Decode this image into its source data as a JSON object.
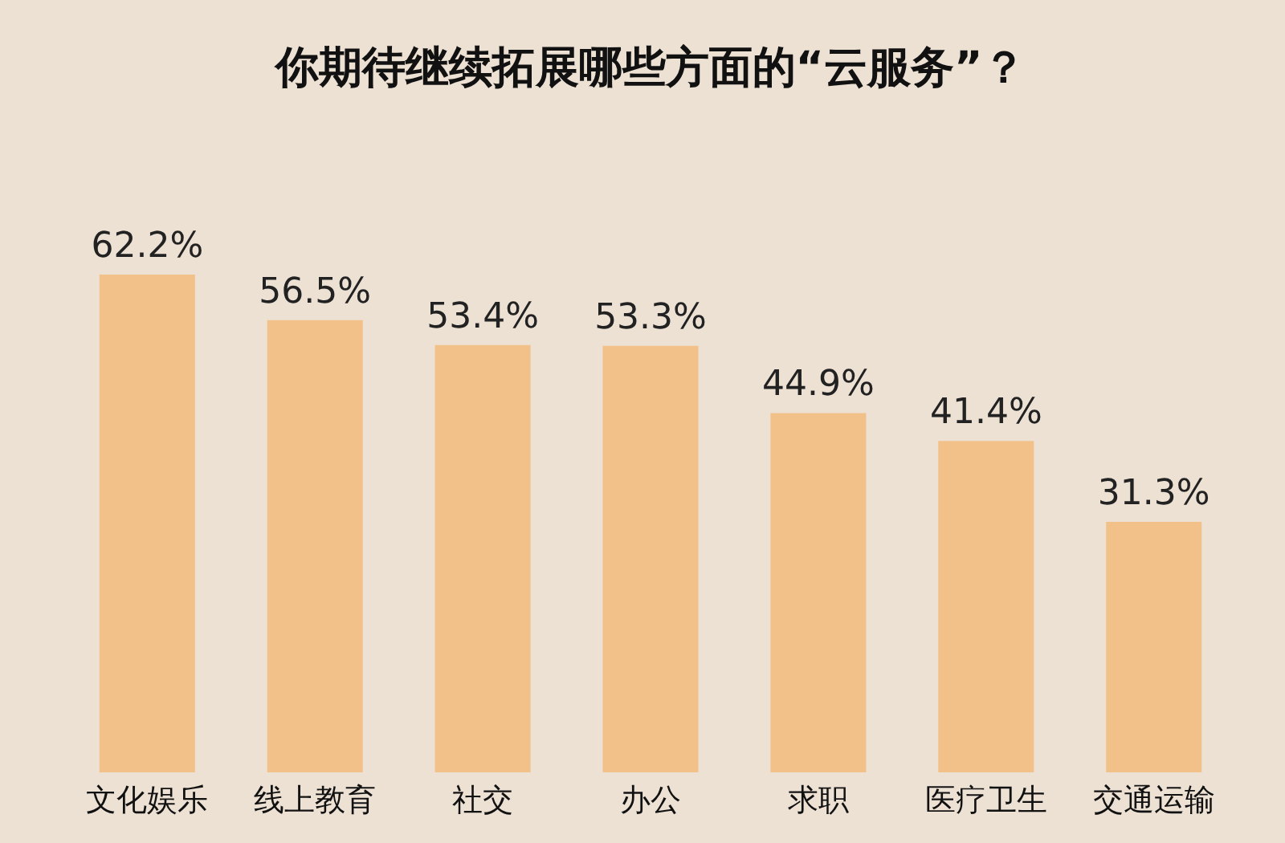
{
  "chart_data": {
    "type": "bar",
    "title": "你期待继续拓展哪些方面的“云服务”？",
    "categories": [
      "文化娱乐",
      "线上教育",
      "社交",
      "办公",
      "求职",
      "医疗卫生",
      "交通运输"
    ],
    "values": [
      62.2,
      56.5,
      53.4,
      53.3,
      44.9,
      41.4,
      31.3
    ],
    "value_labels": [
      "62.2%",
      "56.5%",
      "53.4%",
      "53.3%",
      "44.9%",
      "41.4%",
      "31.3%"
    ],
    "color": "#f2c18a"
  }
}
